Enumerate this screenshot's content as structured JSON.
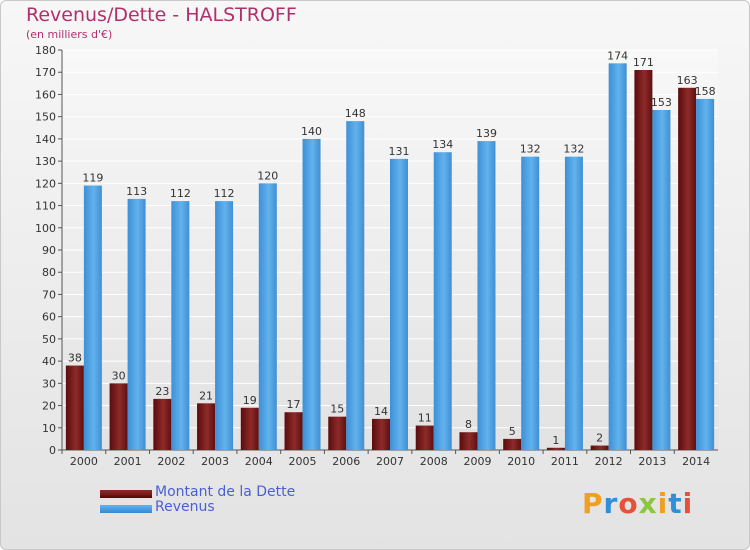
{
  "title": "Revenus/Dette - HALSTROFF",
  "subtitle": "(en milliers d'€)",
  "logo": "Proxiti",
  "colors": {
    "dette": "#7a1a1a",
    "revenus": "#4a9fe0",
    "title": "#b0306a",
    "legend_text": "#4a5fd6"
  },
  "chart_data": {
    "type": "bar",
    "categories": [
      "2000",
      "2001",
      "2002",
      "2003",
      "2004",
      "2005",
      "2006",
      "2007",
      "2008",
      "2009",
      "2010",
      "2011",
      "2012",
      "2013",
      "2014"
    ],
    "series": [
      {
        "name": "Montant de la Dette",
        "values": [
          38,
          30,
          23,
          21,
          19,
          17,
          15,
          14,
          11,
          8,
          5,
          1,
          2,
          171,
          163
        ]
      },
      {
        "name": "Revenus",
        "values": [
          119,
          113,
          112,
          112,
          120,
          140,
          148,
          131,
          134,
          139,
          132,
          132,
          174,
          153,
          158
        ]
      }
    ],
    "ylim": [
      0,
      180
    ],
    "yticks": [
      0,
      10,
      20,
      30,
      40,
      50,
      60,
      70,
      80,
      90,
      100,
      110,
      120,
      130,
      140,
      150,
      160,
      170,
      180
    ],
    "grid": true,
    "legend": "bottom-left"
  }
}
